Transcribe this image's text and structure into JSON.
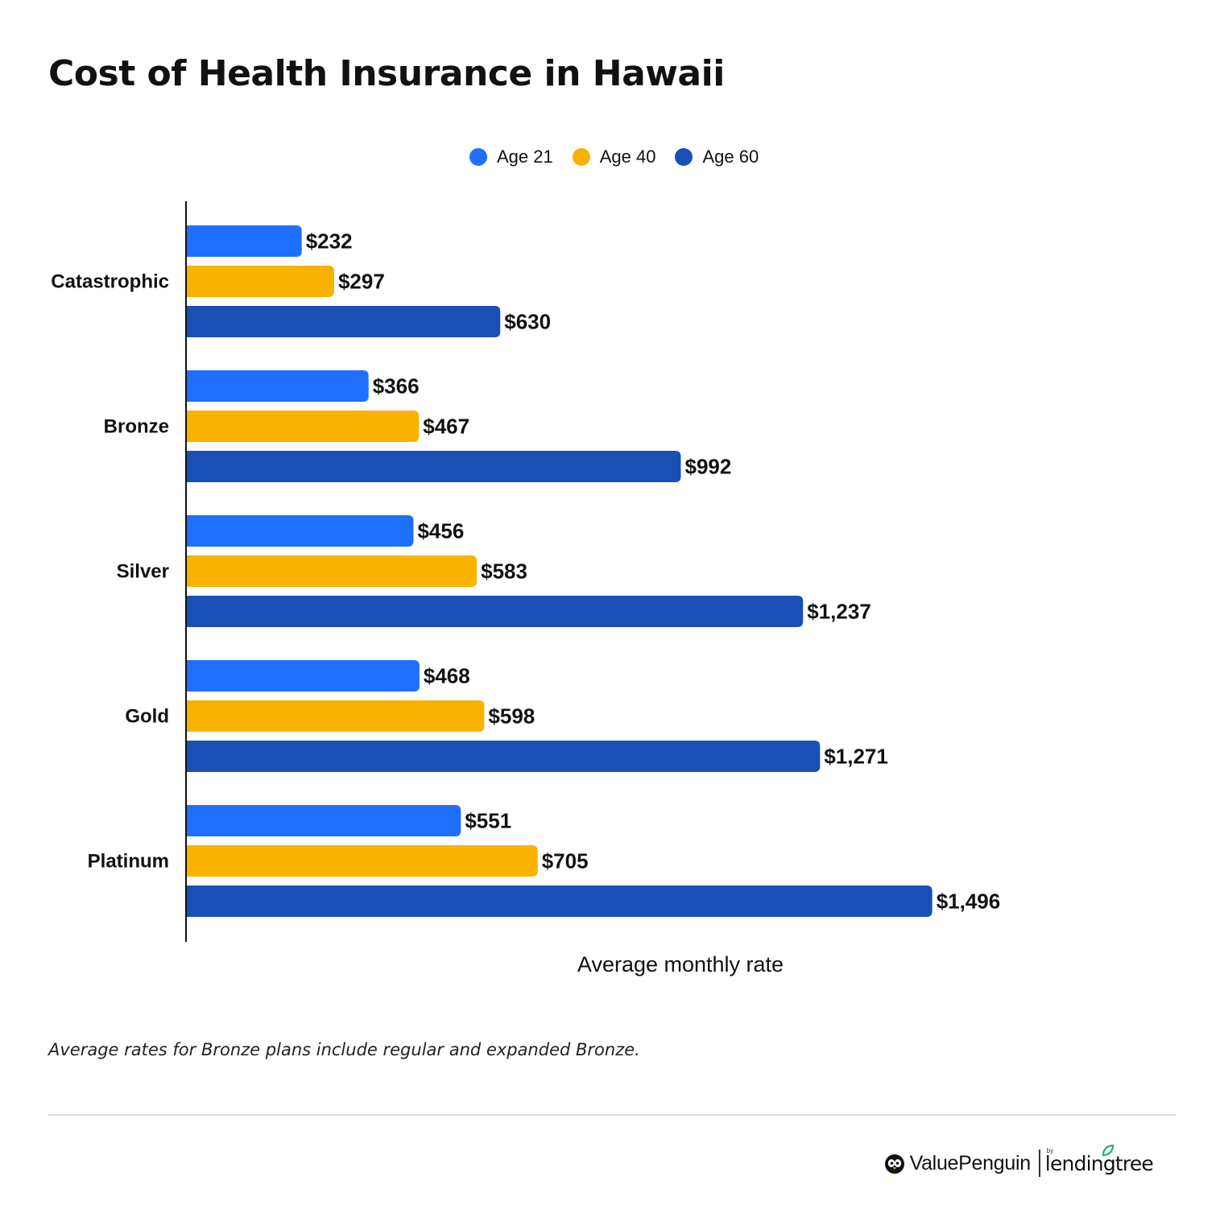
{
  "title": "Cost of Health Insurance in Hawaii",
  "legend": [
    {
      "label": "Age 21",
      "color": "#1f6fff"
    },
    {
      "label": "Age 40",
      "color": "#f9b200"
    },
    {
      "label": "Age 60",
      "color": "#1a4fb5"
    }
  ],
  "chart_data": {
    "type": "bar",
    "orientation": "horizontal",
    "categories": [
      "Catastrophic",
      "Bronze",
      "Silver",
      "Gold",
      "Platinum"
    ],
    "series": [
      {
        "name": "Age 21",
        "color": "#1f6fff",
        "values": [
          232,
          366,
          456,
          468,
          551
        ],
        "labels": [
          "$232",
          "$366",
          "$456",
          "$468",
          "$551"
        ]
      },
      {
        "name": "Age 40",
        "color": "#f9b200",
        "values": [
          297,
          467,
          583,
          598,
          705
        ],
        "labels": [
          "$297",
          "$467",
          "$583",
          "$598",
          "$705"
        ]
      },
      {
        "name": "Age 60",
        "color": "#1a4fb5",
        "values": [
          630,
          992,
          1237,
          1271,
          1496
        ],
        "labels": [
          "$630",
          "$992",
          "$1,237",
          "$1,271",
          "$1,496"
        ]
      }
    ],
    "xlabel": "Average monthly rate",
    "ylabel": "",
    "xlim": [
      0,
      1800
    ],
    "grid": false,
    "legend_position": "top-center"
  },
  "footnote": "Average rates for Bronze plans include regular and expanded Bronze.",
  "brand": {
    "primary": "ValuePenguin",
    "by": "by",
    "secondary": "lendingtree"
  }
}
